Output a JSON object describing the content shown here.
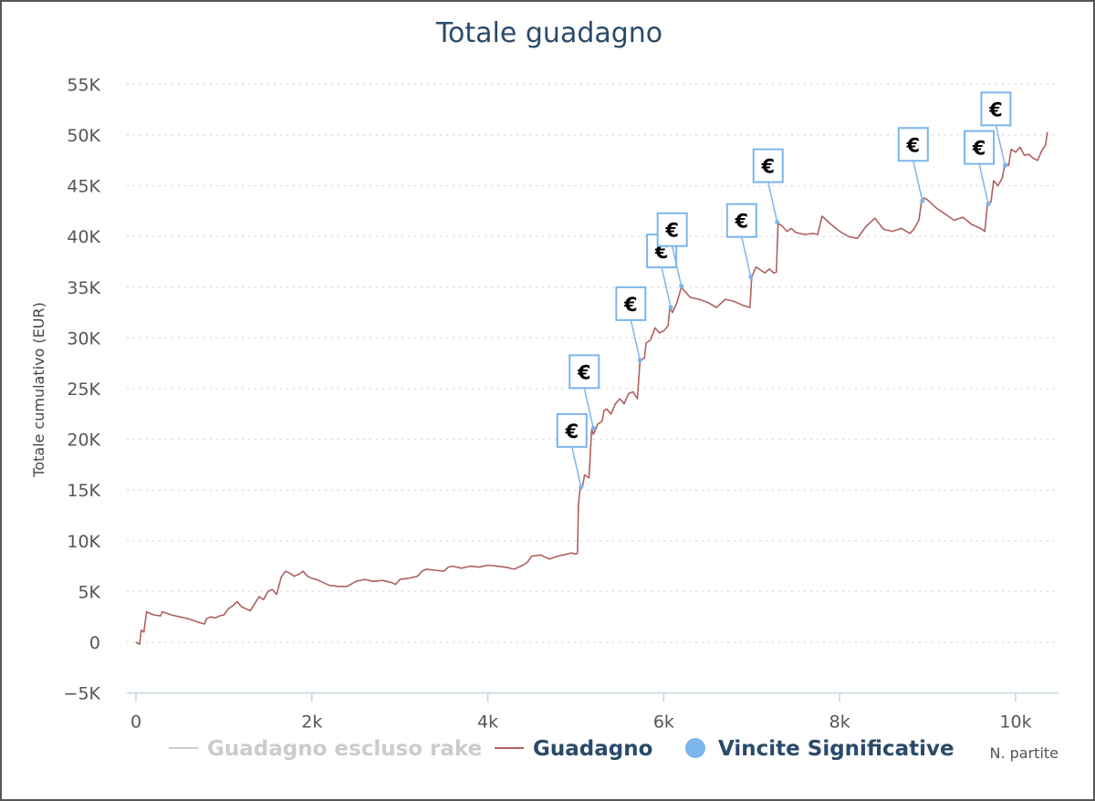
{
  "chart_data": {
    "type": "line",
    "title": "Totale guadagno",
    "xlabel": "N. partite",
    "ylabel": "Totale cumulativo (EUR)",
    "xlim": [
      0,
      10400
    ],
    "ylim": [
      -5000,
      55000
    ],
    "x_ticks": [
      {
        "value": 0,
        "label": "0"
      },
      {
        "value": 2000,
        "label": "2k"
      },
      {
        "value": 4000,
        "label": "4k"
      },
      {
        "value": 6000,
        "label": "6k"
      },
      {
        "value": 8000,
        "label": "8k"
      },
      {
        "value": 10000,
        "label": "10k"
      }
    ],
    "y_ticks": [
      {
        "value": -5000,
        "label": "−5K"
      },
      {
        "value": 0,
        "label": "0"
      },
      {
        "value": 5000,
        "label": "5K"
      },
      {
        "value": 10000,
        "label": "10K"
      },
      {
        "value": 15000,
        "label": "15K"
      },
      {
        "value": 20000,
        "label": "20K"
      },
      {
        "value": 25000,
        "label": "25K"
      },
      {
        "value": 30000,
        "label": "30K"
      },
      {
        "value": 35000,
        "label": "35K"
      },
      {
        "value": 40000,
        "label": "40K"
      },
      {
        "value": 45000,
        "label": "45K"
      },
      {
        "value": 50000,
        "label": "50K"
      },
      {
        "value": 55000,
        "label": "55K"
      }
    ],
    "grid": true,
    "legend_position": "bottom",
    "series": [
      {
        "name": "Guadagno escluso rake",
        "color": "#cccccc",
        "hidden": true,
        "points": []
      },
      {
        "name": "Guadagno",
        "color": "#b06060",
        "points": [
          [
            0,
            0
          ],
          [
            40,
            -200
          ],
          [
            60,
            1200
          ],
          [
            90,
            1000
          ],
          [
            120,
            3000
          ],
          [
            200,
            2700
          ],
          [
            280,
            2600
          ],
          [
            300,
            3000
          ],
          [
            400,
            2700
          ],
          [
            500,
            2500
          ],
          [
            600,
            2300
          ],
          [
            700,
            2000
          ],
          [
            780,
            1800
          ],
          [
            800,
            2300
          ],
          [
            850,
            2500
          ],
          [
            900,
            2400
          ],
          [
            950,
            2600
          ],
          [
            1000,
            2700
          ],
          [
            1050,
            3300
          ],
          [
            1100,
            3600
          ],
          [
            1150,
            4000
          ],
          [
            1200,
            3500
          ],
          [
            1250,
            3300
          ],
          [
            1300,
            3100
          ],
          [
            1350,
            3800
          ],
          [
            1400,
            4500
          ],
          [
            1450,
            4200
          ],
          [
            1500,
            5000
          ],
          [
            1550,
            5200
          ],
          [
            1600,
            4700
          ],
          [
            1650,
            6400
          ],
          [
            1700,
            7000
          ],
          [
            1750,
            6800
          ],
          [
            1800,
            6500
          ],
          [
            1850,
            6700
          ],
          [
            1900,
            7000
          ],
          [
            1950,
            6500
          ],
          [
            2000,
            6300
          ],
          [
            2050,
            6200
          ],
          [
            2100,
            6000
          ],
          [
            2200,
            5600
          ],
          [
            2300,
            5500
          ],
          [
            2400,
            5500
          ],
          [
            2500,
            6000
          ],
          [
            2600,
            6200
          ],
          [
            2700,
            6000
          ],
          [
            2800,
            6100
          ],
          [
            2900,
            5900
          ],
          [
            2950,
            5700
          ],
          [
            3000,
            6200
          ],
          [
            3100,
            6300
          ],
          [
            3200,
            6500
          ],
          [
            3250,
            7000
          ],
          [
            3300,
            7200
          ],
          [
            3400,
            7100
          ],
          [
            3500,
            7000
          ],
          [
            3550,
            7400
          ],
          [
            3600,
            7500
          ],
          [
            3700,
            7300
          ],
          [
            3800,
            7500
          ],
          [
            3900,
            7400
          ],
          [
            4000,
            7600
          ],
          [
            4100,
            7500
          ],
          [
            4200,
            7400
          ],
          [
            4300,
            7200
          ],
          [
            4400,
            7600
          ],
          [
            4450,
            7900
          ],
          [
            4500,
            8500
          ],
          [
            4600,
            8600
          ],
          [
            4700,
            8200
          ],
          [
            4800,
            8500
          ],
          [
            4900,
            8700
          ],
          [
            4950,
            8800
          ],
          [
            5000,
            8700
          ],
          [
            5020,
            8800
          ],
          [
            5030,
            13500
          ],
          [
            5050,
            15300
          ],
          [
            5080,
            15500
          ],
          [
            5100,
            16500
          ],
          [
            5150,
            16200
          ],
          [
            5180,
            21000
          ],
          [
            5200,
            20500
          ],
          [
            5250,
            21500
          ],
          [
            5300,
            21800
          ],
          [
            5320,
            22800
          ],
          [
            5350,
            23000
          ],
          [
            5400,
            22500
          ],
          [
            5450,
            23500
          ],
          [
            5500,
            24000
          ],
          [
            5550,
            23500
          ],
          [
            5600,
            24500
          ],
          [
            5650,
            24700
          ],
          [
            5700,
            24000
          ],
          [
            5730,
            27800
          ],
          [
            5780,
            28000
          ],
          [
            5800,
            29500
          ],
          [
            5850,
            29800
          ],
          [
            5880,
            30500
          ],
          [
            5900,
            31000
          ],
          [
            5950,
            30500
          ],
          [
            6000,
            30700
          ],
          [
            6050,
            31200
          ],
          [
            6070,
            33000
          ],
          [
            6100,
            32500
          ],
          [
            6150,
            33500
          ],
          [
            6200,
            35000
          ],
          [
            6250,
            34500
          ],
          [
            6300,
            34000
          ],
          [
            6400,
            33800
          ],
          [
            6500,
            33500
          ],
          [
            6600,
            33000
          ],
          [
            6700,
            33800
          ],
          [
            6800,
            33600
          ],
          [
            6900,
            33200
          ],
          [
            6980,
            33000
          ],
          [
            7000,
            36000
          ],
          [
            7050,
            37000
          ],
          [
            7100,
            36700
          ],
          [
            7150,
            36400
          ],
          [
            7200,
            36800
          ],
          [
            7250,
            36400
          ],
          [
            7280,
            36500
          ],
          [
            7300,
            41300
          ],
          [
            7350,
            41000
          ],
          [
            7400,
            40500
          ],
          [
            7450,
            40800
          ],
          [
            7500,
            40400
          ],
          [
            7600,
            40200
          ],
          [
            7700,
            40300
          ],
          [
            7750,
            40200
          ],
          [
            7800,
            42000
          ],
          [
            7900,
            41200
          ],
          [
            8000,
            40500
          ],
          [
            8100,
            40000
          ],
          [
            8200,
            39800
          ],
          [
            8300,
            41000
          ],
          [
            8400,
            41800
          ],
          [
            8500,
            40700
          ],
          [
            8600,
            40500
          ],
          [
            8700,
            40800
          ],
          [
            8800,
            40300
          ],
          [
            8850,
            40800
          ],
          [
            8900,
            41600
          ],
          [
            8930,
            43500
          ],
          [
            8960,
            43800
          ],
          [
            9000,
            43600
          ],
          [
            9100,
            42800
          ],
          [
            9200,
            42200
          ],
          [
            9300,
            41600
          ],
          [
            9400,
            41900
          ],
          [
            9500,
            41200
          ],
          [
            9600,
            40800
          ],
          [
            9650,
            40500
          ],
          [
            9680,
            43300
          ],
          [
            9720,
            43400
          ],
          [
            9750,
            45500
          ],
          [
            9800,
            45000
          ],
          [
            9850,
            45800
          ],
          [
            9880,
            47200
          ],
          [
            9920,
            47000
          ],
          [
            9950,
            48600
          ],
          [
            10000,
            48300
          ],
          [
            10050,
            48800
          ],
          [
            10100,
            48000
          ],
          [
            10150,
            48100
          ],
          [
            10200,
            47700
          ],
          [
            10250,
            47500
          ],
          [
            10300,
            48500
          ],
          [
            10340,
            49000
          ],
          [
            10360,
            50300
          ]
        ]
      },
      {
        "name": "Vincite Significative",
        "color": "#7cb5ec",
        "type": "flags",
        "flag_symbol": "€",
        "points": [
          [
            5060,
            15300
          ],
          [
            5200,
            21100
          ],
          [
            5730,
            27800
          ],
          [
            6080,
            33000
          ],
          [
            6200,
            35100
          ],
          [
            6990,
            36000
          ],
          [
            7290,
            41400
          ],
          [
            8940,
            43500
          ],
          [
            9690,
            43200
          ],
          [
            9880,
            47000
          ]
        ]
      }
    ]
  }
}
